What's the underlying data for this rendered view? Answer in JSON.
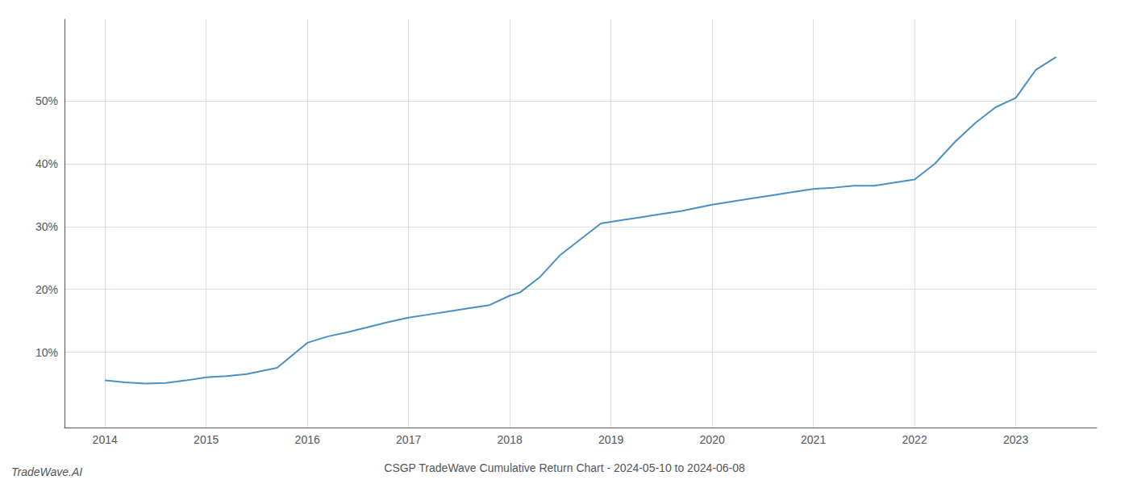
{
  "chart_data": {
    "type": "line",
    "title": "CSGP TradeWave Cumulative Return Chart - 2024-05-10 to 2024-06-08",
    "annotations": [
      "TradeWave.AI"
    ],
    "color": "#4a90c4",
    "x": [
      2014.0,
      2014.2,
      2014.4,
      2014.6,
      2014.8,
      2015.0,
      2015.2,
      2015.4,
      2015.7,
      2016.0,
      2016.2,
      2016.4,
      2016.6,
      2016.8,
      2017.0,
      2017.2,
      2017.4,
      2017.6,
      2017.8,
      2018.0,
      2018.1,
      2018.3,
      2018.5,
      2018.7,
      2018.9,
      2019.1,
      2019.3,
      2019.5,
      2019.7,
      2020.0,
      2020.2,
      2020.4,
      2020.6,
      2020.8,
      2021.0,
      2021.2,
      2021.4,
      2021.6,
      2022.0,
      2022.2,
      2022.4,
      2022.6,
      2022.8,
      2023.0,
      2023.2,
      2023.4
    ],
    "values": [
      5.5,
      5.2,
      5.0,
      5.1,
      5.5,
      6.0,
      6.2,
      6.5,
      7.5,
      11.5,
      12.5,
      13.2,
      14.0,
      14.8,
      15.5,
      16.0,
      16.5,
      17.0,
      17.5,
      19.0,
      19.5,
      22.0,
      25.5,
      28.0,
      30.5,
      31.0,
      31.5,
      32.0,
      32.5,
      33.5,
      34.0,
      34.5,
      35.0,
      35.5,
      36.0,
      36.2,
      36.5,
      36.5,
      37.5,
      40.0,
      43.5,
      46.5,
      49.0,
      50.5,
      55.0,
      57.0
    ],
    "xlim": [
      2013.6,
      2023.8
    ],
    "xticks": [
      2014,
      2015,
      2016,
      2017,
      2018,
      2019,
      2020,
      2021,
      2022,
      2023
    ],
    "ylim": [
      -2,
      63
    ],
    "yticks": [
      {
        "value": 10,
        "label": "10%"
      },
      {
        "value": 20,
        "label": "20%"
      },
      {
        "value": 30,
        "label": "30%"
      },
      {
        "value": 40,
        "label": "40%"
      },
      {
        "value": 50,
        "label": "50%"
      }
    ],
    "grid": true
  }
}
